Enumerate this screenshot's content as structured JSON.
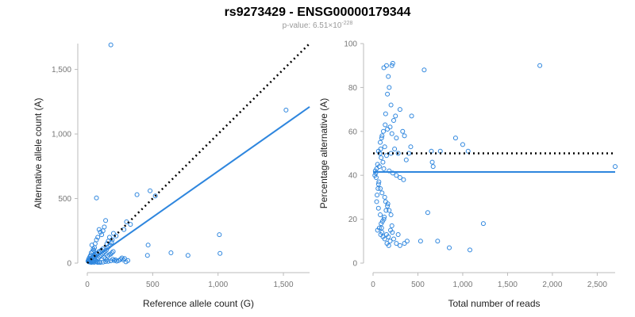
{
  "title": "rs9273429 - ENSG00000179344",
  "subtitle": {
    "prefix": "p-value: 6.51×10",
    "exponent": "-228"
  },
  "colors": {
    "points": "#2e86de",
    "fit_line": "#2e86de",
    "reference_line": "#000000",
    "axis": "#bbbbbb"
  },
  "chart_data": [
    {
      "type": "scatter",
      "xlabel": "Reference allele count (G)",
      "ylabel": "Alternative allele count (A)",
      "xlim": [
        0,
        1700
      ],
      "ylim": [
        0,
        1700
      ],
      "xticks": [
        0,
        500,
        1000,
        1500
      ],
      "xtick_labels": [
        "0",
        "500",
        "1,000",
        "1,500"
      ],
      "yticks": [
        0,
        500,
        1000,
        1500
      ],
      "ytick_labels": [
        "0",
        "500",
        "1,000",
        "1,500"
      ],
      "grid": false,
      "points": [
        [
          180,
          1690
        ],
        [
          1520,
          1185
        ],
        [
          480,
          560
        ],
        [
          380,
          530
        ],
        [
          520,
          520
        ],
        [
          70,
          505
        ],
        [
          1010,
          220
        ],
        [
          1015,
          75
        ],
        [
          770,
          60
        ],
        [
          640,
          80
        ],
        [
          465,
          140
        ],
        [
          460,
          60
        ],
        [
          330,
          300
        ],
        [
          300,
          320
        ],
        [
          280,
          260
        ],
        [
          220,
          210
        ],
        [
          200,
          230
        ],
        [
          190,
          180
        ],
        [
          170,
          200
        ],
        [
          160,
          170
        ],
        [
          150,
          150
        ],
        [
          140,
          330
        ],
        [
          130,
          280
        ],
        [
          120,
          250
        ],
        [
          110,
          220
        ],
        [
          100,
          240
        ],
        [
          90,
          260
        ],
        [
          80,
          200
        ],
        [
          70,
          180
        ],
        [
          60,
          150
        ],
        [
          55,
          120
        ],
        [
          50,
          100
        ],
        [
          45,
          110
        ],
        [
          40,
          90
        ],
        [
          35,
          140
        ],
        [
          30,
          80
        ],
        [
          25,
          60
        ],
        [
          20,
          50
        ],
        [
          15,
          40
        ],
        [
          10,
          30
        ],
        [
          8,
          20
        ],
        [
          5,
          15
        ],
        [
          12,
          10
        ],
        [
          18,
          12
        ],
        [
          22,
          8
        ],
        [
          28,
          15
        ],
        [
          32,
          5
        ],
        [
          38,
          10
        ],
        [
          42,
          18
        ],
        [
          48,
          12
        ],
        [
          52,
          6
        ],
        [
          58,
          20
        ],
        [
          62,
          25
        ],
        [
          68,
          10
        ],
        [
          72,
          15
        ],
        [
          78,
          30
        ],
        [
          85,
          40
        ],
        [
          95,
          50
        ],
        [
          105,
          60
        ],
        [
          115,
          70
        ],
        [
          125,
          80
        ],
        [
          135,
          90
        ],
        [
          145,
          100
        ],
        [
          155,
          120
        ],
        [
          165,
          130
        ],
        [
          175,
          140
        ],
        [
          185,
          160
        ],
        [
          195,
          30
        ],
        [
          205,
          20
        ],
        [
          215,
          25
        ],
        [
          225,
          15
        ],
        [
          240,
          20
        ],
        [
          255,
          30
        ],
        [
          265,
          40
        ],
        [
          275,
          25
        ],
        [
          285,
          35
        ],
        [
          295,
          10
        ],
        [
          310,
          20
        ],
        [
          60,
          60
        ],
        [
          75,
          75
        ],
        [
          88,
          88
        ],
        [
          98,
          92
        ],
        [
          108,
          100
        ],
        [
          118,
          110
        ],
        [
          128,
          45
        ],
        [
          138,
          35
        ],
        [
          148,
          25
        ],
        [
          158,
          55
        ],
        [
          168,
          65
        ],
        [
          178,
          70
        ],
        [
          188,
          80
        ],
        [
          198,
          90
        ],
        [
          30,
          35
        ],
        [
          40,
          45
        ],
        [
          50,
          55
        ],
        [
          20,
          25
        ],
        [
          10,
          15
        ],
        [
          15,
          20
        ],
        [
          25,
          30
        ],
        [
          35,
          40
        ],
        [
          45,
          50
        ],
        [
          55,
          65
        ],
        [
          65,
          70
        ],
        [
          100,
          5
        ],
        [
          120,
          8
        ],
        [
          140,
          12
        ],
        [
          160,
          14
        ],
        [
          180,
          18
        ],
        [
          90,
          8
        ],
        [
          80,
          5
        ]
      ],
      "series": [
        {
          "kind": "fit",
          "x": [
            0,
            1700
          ],
          "y": [
            0,
            1210
          ]
        },
        {
          "kind": "reference",
          "x": [
            0,
            1700
          ],
          "y": [
            0,
            1700
          ]
        }
      ]
    },
    {
      "type": "scatter",
      "xlabel": "Total number of reads",
      "ylabel": "Percentage alternative (A)",
      "xlim": [
        0,
        2700
      ],
      "ylim": [
        0,
        100
      ],
      "xticks": [
        0,
        500,
        1000,
        1500,
        2000,
        2500
      ],
      "xtick_labels": [
        "0",
        "500",
        "1,000",
        "1,500",
        "2,000",
        "2,500"
      ],
      "yticks": [
        0,
        20,
        40,
        60,
        80,
        100
      ],
      "ytick_labels": [
        "0",
        "20",
        "40",
        "60",
        "80",
        "100"
      ],
      "grid": false,
      "points": [
        [
          1860,
          90
        ],
        [
          2700,
          44
        ],
        [
          570,
          88
        ],
        [
          220,
          91
        ],
        [
          210,
          90
        ],
        [
          150,
          90
        ],
        [
          120,
          89
        ],
        [
          170,
          85
        ],
        [
          180,
          80
        ],
        [
          160,
          77
        ],
        [
          200,
          72
        ],
        [
          300,
          70
        ],
        [
          250,
          67
        ],
        [
          230,
          65
        ],
        [
          140,
          68
        ],
        [
          190,
          62
        ],
        [
          160,
          61
        ],
        [
          210,
          59
        ],
        [
          260,
          57
        ],
        [
          330,
          60
        ],
        [
          350,
          58
        ],
        [
          100,
          58
        ],
        [
          80,
          55
        ],
        [
          130,
          53
        ],
        [
          240,
          52
        ],
        [
          280,
          50
        ],
        [
          150,
          49
        ],
        [
          200,
          50
        ],
        [
          60,
          51
        ],
        [
          90,
          48
        ],
        [
          110,
          46
        ],
        [
          50,
          45
        ],
        [
          70,
          44
        ],
        [
          40,
          43
        ],
        [
          120,
          43
        ],
        [
          180,
          42
        ],
        [
          220,
          41
        ],
        [
          260,
          40
        ],
        [
          300,
          39
        ],
        [
          340,
          38
        ],
        [
          30,
          41
        ],
        [
          20,
          40
        ],
        [
          60,
          36
        ],
        [
          80,
          34
        ],
        [
          100,
          32
        ],
        [
          130,
          30
        ],
        [
          140,
          28
        ],
        [
          160,
          26
        ],
        [
          180,
          24
        ],
        [
          200,
          22
        ],
        [
          120,
          20
        ],
        [
          90,
          18
        ],
        [
          70,
          16
        ],
        [
          50,
          15
        ],
        [
          100,
          14
        ],
        [
          150,
          13
        ],
        [
          170,
          12
        ],
        [
          190,
          10
        ],
        [
          230,
          11
        ],
        [
          260,
          9
        ],
        [
          300,
          8
        ],
        [
          80,
          22
        ],
        [
          60,
          25
        ],
        [
          40,
          28
        ],
        [
          45,
          31
        ],
        [
          55,
          34
        ],
        [
          65,
          37
        ],
        [
          430,
          67
        ],
        [
          420,
          53
        ],
        [
          400,
          50
        ],
        [
          370,
          47
        ],
        [
          650,
          51
        ],
        [
          660,
          46
        ],
        [
          670,
          44
        ],
        [
          1000,
          54
        ],
        [
          920,
          57
        ],
        [
          750,
          51
        ],
        [
          1060,
          51
        ],
        [
          610,
          23
        ],
        [
          1230,
          18
        ],
        [
          720,
          10
        ],
        [
          850,
          7
        ],
        [
          1080,
          6
        ],
        [
          530,
          10
        ],
        [
          350,
          9
        ],
        [
          380,
          10
        ],
        [
          210,
          17
        ],
        [
          280,
          13
        ],
        [
          110,
          12
        ],
        [
          130,
          11
        ],
        [
          155,
          9
        ],
        [
          175,
          8
        ],
        [
          195,
          15
        ],
        [
          215,
          14
        ],
        [
          85,
          13
        ],
        [
          95,
          16
        ],
        [
          105,
          19
        ],
        [
          125,
          21
        ],
        [
          145,
          24
        ],
        [
          165,
          27
        ],
        [
          35,
          39
        ],
        [
          25,
          42
        ],
        [
          75,
          50
        ],
        [
          85,
          52
        ],
        [
          95,
          57
        ],
        [
          115,
          60
        ],
        [
          135,
          63
        ]
      ],
      "series": [
        {
          "kind": "fit",
          "x": [
            0,
            2700
          ],
          "y": [
            41.5,
            41.5
          ]
        },
        {
          "kind": "reference",
          "x": [
            0,
            2700
          ],
          "y": [
            50,
            50
          ]
        }
      ]
    }
  ]
}
